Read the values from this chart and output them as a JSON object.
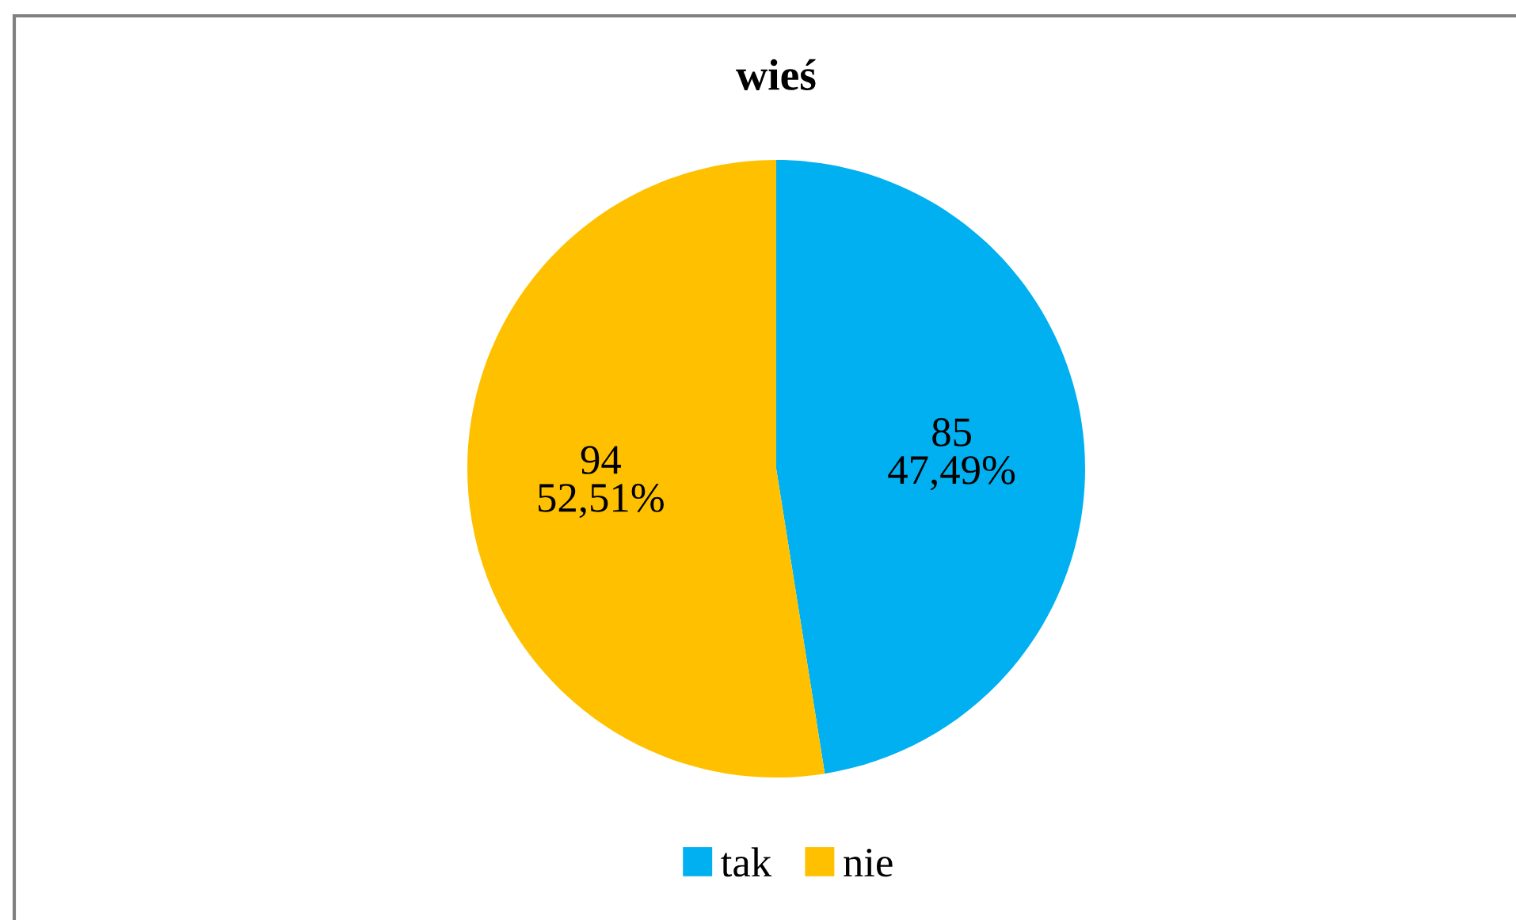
{
  "chart_data": {
    "type": "pie",
    "title": "wieś",
    "categories": [
      "tak",
      "nie"
    ],
    "values": [
      85,
      94
    ],
    "colors": [
      "#00b0f0",
      "#ffc000"
    ],
    "value_labels": [
      "85\n47,49%",
      "94\n52,51%"
    ],
    "legend": "bottom"
  }
}
